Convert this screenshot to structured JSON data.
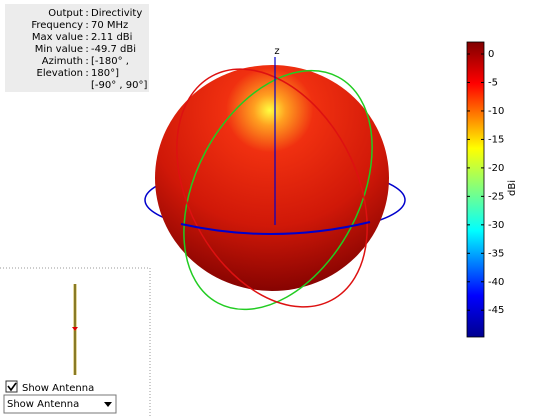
{
  "info": {
    "separator": ":",
    "rows": [
      {
        "label": "Output",
        "value": "Directivity"
      },
      {
        "label": "Frequency",
        "value": "70 MHz"
      },
      {
        "label": "Max value",
        "value": "2.11 dBi"
      },
      {
        "label": "Min value",
        "value": "-49.7 dBi"
      },
      {
        "label": "Azimuth",
        "value": "[-180° ,"
      },
      {
        "label": "Elevation",
        "value": "180°]"
      }
    ],
    "extra": "[-90° , 90°]"
  },
  "plot": {
    "axis_label": "z"
  },
  "colorbar": {
    "label": "dBi",
    "lim": [
      -49.7,
      2.11
    ],
    "ticks": [
      0,
      -5,
      -10,
      -15,
      -20,
      -25,
      -30,
      -35,
      -40,
      -45
    ]
  },
  "controls": {
    "checkbox": {
      "label": "Show Antenna",
      "checked": true
    },
    "dropdown": {
      "value": "Show Antenna"
    }
  }
}
